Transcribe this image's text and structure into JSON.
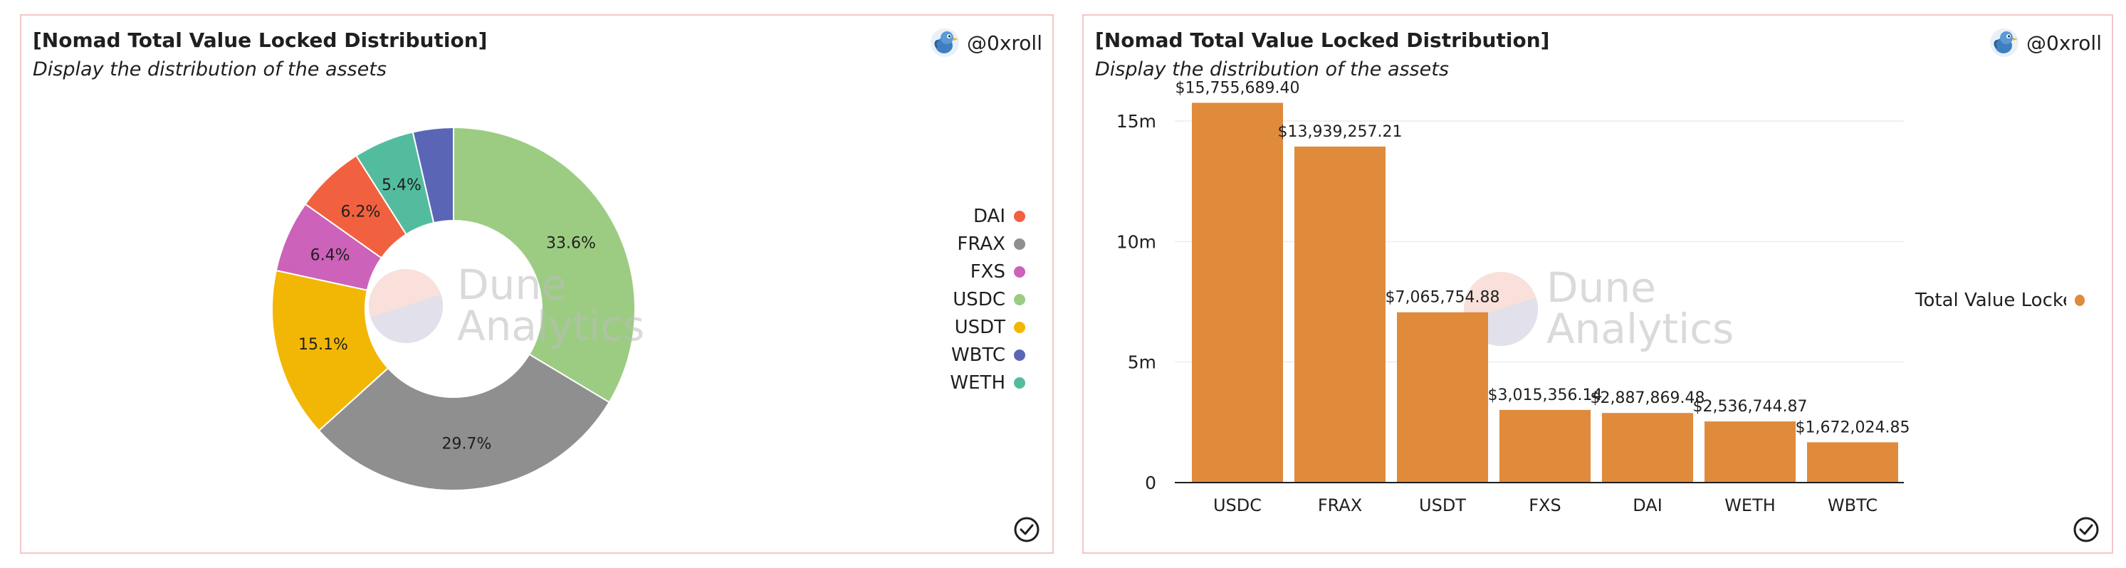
{
  "brand_colors": {
    "border": "#f3c7c7",
    "bar": "#e08a3c"
  },
  "watermark": {
    "line1": "Dune",
    "line2": "Analytics"
  },
  "author": {
    "handle": "@0xroll",
    "avatar_icon": "bird-avatar-icon"
  },
  "status_icon": "check-circle-icon",
  "chart_data": [
    {
      "type": "pie",
      "title": "[Nomad Total Value Locked Distribution]",
      "subtitle": "Display the distribution of the assets",
      "donut": true,
      "slices": [
        {
          "label": "USDC",
          "value": 33.6,
          "display": "33.6%",
          "color": "#9ccc82"
        },
        {
          "label": "FRAX",
          "value": 29.7,
          "display": "29.7%",
          "color": "#8f8f8f"
        },
        {
          "label": "USDT",
          "value": 15.1,
          "display": "15.1%",
          "color": "#f2b705"
        },
        {
          "label": "FXS",
          "value": 6.4,
          "display": "6.4%",
          "color": "#cc62b9"
        },
        {
          "label": "DAI",
          "value": 6.2,
          "display": "6.2%",
          "color": "#f2613f"
        },
        {
          "label": "WETH",
          "value": 5.4,
          "display": "5.4%",
          "color": "#53bc9f"
        },
        {
          "label": "WBTC",
          "value": 3.6,
          "display": "",
          "color": "#5a66b5"
        }
      ],
      "legend_order": [
        "DAI",
        "FRAX",
        "FXS",
        "USDC",
        "USDT",
        "WBTC",
        "WETH"
      ],
      "legend_position": "right"
    },
    {
      "type": "bar",
      "title": "[Nomad Total Value Locked Distribution]",
      "subtitle": "Display the distribution of the assets",
      "categories": [
        "USDC",
        "FRAX",
        "USDT",
        "FXS",
        "DAI",
        "WETH",
        "WBTC"
      ],
      "series": [
        {
          "name": "Total Value Locked",
          "color": "#e08a3c",
          "values": [
            15755689.4,
            13939257.21,
            7065754.88,
            3015356.14,
            2887869.48,
            2536744.87,
            1672024.85
          ],
          "labels": [
            "$15,755,689.40",
            "$13,939,257.21",
            "$7,065,754.88",
            "$3,015,356.14",
            "$2,887,869.48",
            "$2,536,744.87",
            "$1,672,024.85"
          ]
        }
      ],
      "legend_label": "Total Value Locked",
      "ylim": [
        0,
        16000000
      ],
      "yticks": [
        0,
        5000000,
        10000000,
        15000000
      ],
      "ytick_labels": [
        "0",
        "5m",
        "10m",
        "15m"
      ],
      "grid": true,
      "xlabel": "",
      "ylabel": "",
      "legend_position": "right"
    }
  ]
}
